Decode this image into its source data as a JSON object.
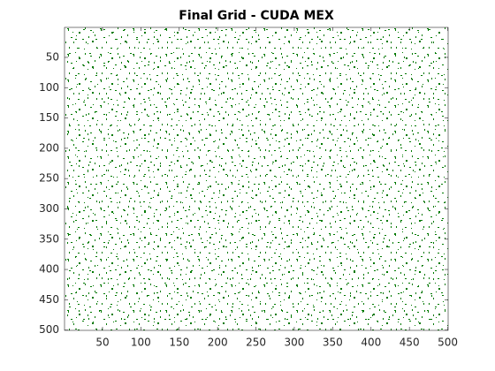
{
  "chart_data": {
    "type": "image",
    "title": "Final Grid - CUDA MEX",
    "xlim": [
      0.5,
      500.5
    ],
    "ylim": [
      0.5,
      500.5
    ],
    "y_reversed": true,
    "xticks": [
      50,
      100,
      150,
      200,
      250,
      300,
      350,
      400,
      450,
      500
    ],
    "yticks": [
      50,
      100,
      150,
      200,
      250,
      300,
      350,
      400,
      450,
      500
    ],
    "colors": [
      "#ffffff",
      "#007800"
    ]
  }
}
